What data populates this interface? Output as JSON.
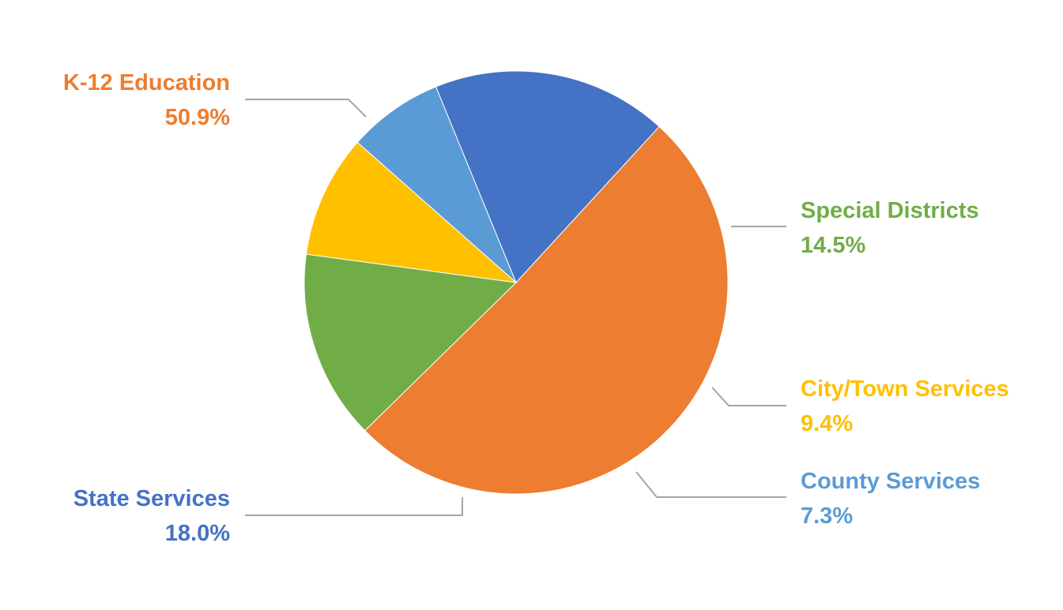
{
  "chart_data": {
    "type": "pie",
    "title": "",
    "slices": [
      {
        "label": "K-12 Education",
        "value": 50.9,
        "display": "50.9%",
        "color": "#ED7D31"
      },
      {
        "label": "Special Districts",
        "value": 14.5,
        "display": "14.5%",
        "color": "#70AD47"
      },
      {
        "label": "City/Town Services",
        "value": 9.4,
        "display": "9.4%",
        "color": "#FFC000"
      },
      {
        "label": "County Services",
        "value": 7.3,
        "display": "7.3%",
        "color": "#5B9BD5"
      },
      {
        "label": "State Services",
        "value": 18.0,
        "display": "18.0%",
        "color": "#4472C4"
      }
    ],
    "legend": "none",
    "data_labels": "outside-with-leader-lines",
    "leader_line_color": "#A5A5A5"
  }
}
